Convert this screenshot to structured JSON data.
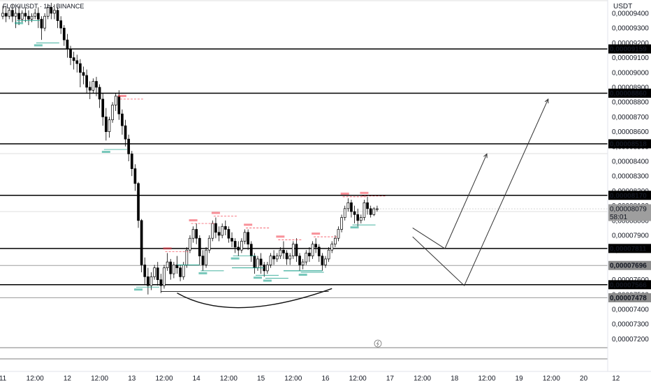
{
  "header": {
    "symbol_line": "FLOKIUSDT · 1h · BINANCE"
  },
  "price_axis": {
    "currency": "USDT",
    "labels": [
      "0,00009400",
      "0,00009300",
      "0,00009200",
      "0,00009100",
      "0,00009000",
      "0,00008900",
      "0,00008800",
      "0,00008700",
      "0,00008600",
      "0,00008500",
      "0,00008400",
      "0,00008300",
      "0,00008200",
      "0,00008100",
      "0,00008000",
      "0,00007900",
      "0,00007800",
      "0,00007700",
      "0,00007600",
      "0,00007500",
      "0,00007400",
      "0,00007300",
      "0,00007200"
    ],
    "current_price": "0,00008079",
    "countdown": "58:01",
    "colors": {
      "dark_tag": "#000000",
      "grey_tag": "#8c8c8c",
      "current_tag": "#9e9e9e"
    }
  },
  "time_axis": {
    "labels": [
      "11",
      "12:00",
      "12",
      "12:00",
      "13",
      "12:00",
      "14",
      "12:00",
      "15",
      "12:00",
      "16",
      "12:00",
      "17",
      "12:00",
      "18",
      "12:00",
      "19",
      "12:00",
      "20",
      "12"
    ]
  },
  "chart_data": {
    "type": "line",
    "title": "FLOKIUSDT · 1h · BINANCE",
    "ylim": [
      7.1e-05,
      9.45e-05
    ],
    "levels": [
      {
        "price": 9.159e-05,
        "label": "0,00009159",
        "style": "dark"
      },
      {
        "price": 8.86e-05,
        "label": "0,00008860",
        "style": "dark"
      },
      {
        "price": 8.518e-05,
        "label": "0,00008518",
        "style": "dark"
      },
      {
        "price": 8.17e-05,
        "label": "0,00008170",
        "style": "dark"
      },
      {
        "price": 7.811e-05,
        "label": "0,00007811",
        "style": "dark"
      },
      {
        "price": 7.696e-05,
        "label": "0,00007696",
        "style": "grey"
      },
      {
        "price": 7.566e-05,
        "label": "0,00007566",
        "style": "dark"
      },
      {
        "price": 7.478e-05,
        "label": "0,00007478",
        "style": "grey"
      }
    ],
    "projection_paths": [
      {
        "name": "short-scenario",
        "points": [
          [
            17.35,
            7.95e-05
          ],
          [
            17.85,
            7.81e-05
          ],
          [
            18.5,
            8.45e-05
          ]
        ]
      },
      {
        "name": "long-scenario",
        "points": [
          [
            17.35,
            7.89e-05
          ],
          [
            18.15,
            7.56e-05
          ],
          [
            19.45,
            8.82e-05
          ]
        ]
      }
    ],
    "pattern_arc": {
      "name": "rounded-bottom",
      "from": [
        13.7,
        7.51e-05
      ],
      "bottom": [
        14.55,
        7.43e-05
      ],
      "to": [
        16.1,
        7.54e-05
      ]
    },
    "candles": [
      {
        "t": 11.0,
        "o": 9380,
        "h": 9450,
        "c": 9400,
        "l": 9360
      },
      {
        "t": 11.05,
        "o": 9400,
        "h": 9450,
        "c": 9380,
        "l": 9340
      },
      {
        "t": 11.1,
        "o": 9380,
        "h": 9440,
        "c": 9420,
        "l": 9360
      },
      {
        "t": 11.15,
        "o": 9420,
        "h": 9460,
        "c": 9380,
        "l": 9340
      },
      {
        "t": 11.2,
        "o": 9380,
        "h": 9440,
        "c": 9400,
        "l": 9300
      },
      {
        "t": 11.25,
        "o": 9400,
        "h": 9450,
        "c": 9360,
        "l": 9320
      },
      {
        "t": 11.3,
        "o": 9360,
        "h": 9420,
        "c": 9400,
        "l": 9340
      },
      {
        "t": 11.35,
        "o": 9400,
        "h": 9440,
        "c": 9380,
        "l": 9340
      },
      {
        "t": 11.4,
        "o": 9380,
        "h": 9420,
        "c": 9360,
        "l": 9320
      },
      {
        "t": 11.45,
        "o": 9360,
        "h": 9400,
        "c": 9380,
        "l": 9340
      },
      {
        "t": 11.5,
        "o": 9380,
        "h": 9430,
        "c": 9400,
        "l": 9360
      },
      {
        "t": 11.55,
        "o": 9400,
        "h": 9440,
        "c": 9360,
        "l": 9300
      },
      {
        "t": 11.6,
        "o": 9360,
        "h": 9380,
        "c": 9300,
        "l": 9220
      },
      {
        "t": 11.65,
        "o": 9300,
        "h": 9400,
        "c": 9380,
        "l": 9280
      },
      {
        "t": 11.7,
        "o": 9380,
        "h": 9460,
        "c": 9440,
        "l": 9360
      },
      {
        "t": 11.75,
        "o": 9440,
        "h": 9470,
        "c": 9400,
        "l": 9360
      },
      {
        "t": 11.8,
        "o": 9400,
        "h": 9460,
        "c": 9420,
        "l": 9360
      },
      {
        "t": 11.85,
        "o": 9420,
        "h": 9440,
        "c": 9350,
        "l": 9300
      },
      {
        "t": 11.9,
        "o": 9350,
        "h": 9380,
        "c": 9300,
        "l": 9260
      },
      {
        "t": 11.95,
        "o": 9300,
        "h": 9320,
        "c": 9220,
        "l": 9180
      },
      {
        "t": 12.0,
        "o": 9220,
        "h": 9260,
        "c": 9160,
        "l": 9100
      },
      {
        "t": 12.05,
        "o": 9160,
        "h": 9180,
        "c": 9100,
        "l": 9050
      },
      {
        "t": 12.1,
        "o": 9100,
        "h": 9140,
        "c": 9080,
        "l": 9020
      },
      {
        "t": 12.15,
        "o": 9080,
        "h": 9120,
        "c": 9060,
        "l": 9000
      },
      {
        "t": 12.2,
        "o": 9060,
        "h": 9090,
        "c": 9000,
        "l": 8900
      },
      {
        "t": 12.25,
        "o": 9000,
        "h": 9040,
        "c": 8980,
        "l": 8920
      },
      {
        "t": 12.3,
        "o": 8980,
        "h": 9020,
        "c": 8900,
        "l": 8860
      },
      {
        "t": 12.35,
        "o": 8900,
        "h": 8940,
        "c": 8880,
        "l": 8820
      },
      {
        "t": 12.4,
        "o": 8880,
        "h": 8960,
        "c": 8940,
        "l": 8860
      },
      {
        "t": 12.45,
        "o": 8940,
        "h": 8970,
        "c": 8900,
        "l": 8840
      },
      {
        "t": 12.5,
        "o": 8900,
        "h": 8920,
        "c": 8820,
        "l": 8760
      },
      {
        "t": 12.55,
        "o": 8820,
        "h": 8860,
        "c": 8700,
        "l": 8640
      },
      {
        "t": 12.6,
        "o": 8700,
        "h": 8760,
        "c": 8600,
        "l": 8540
      },
      {
        "t": 12.65,
        "o": 8600,
        "h": 8700,
        "c": 8680,
        "l": 8560
      },
      {
        "t": 12.7,
        "o": 8680,
        "h": 8800,
        "c": 8780,
        "l": 8660
      },
      {
        "t": 12.75,
        "o": 8780,
        "h": 8860,
        "c": 8840,
        "l": 8740
      },
      {
        "t": 12.8,
        "o": 8840,
        "h": 8880,
        "c": 8720,
        "l": 8680
      },
      {
        "t": 12.85,
        "o": 8720,
        "h": 8750,
        "c": 8640,
        "l": 8580
      },
      {
        "t": 12.9,
        "o": 8640,
        "h": 8680,
        "c": 8550,
        "l": 8500
      },
      {
        "t": 12.95,
        "o": 8550,
        "h": 8580,
        "c": 8450,
        "l": 8400
      },
      {
        "t": 13.0,
        "o": 8450,
        "h": 8470,
        "c": 8350,
        "l": 8300
      },
      {
        "t": 13.05,
        "o": 8350,
        "h": 8380,
        "c": 8250,
        "l": 8200
      },
      {
        "t": 13.1,
        "o": 8250,
        "h": 8260,
        "c": 8000,
        "l": 7950
      },
      {
        "t": 13.15,
        "o": 8000,
        "h": 8010,
        "c": 7700,
        "l": 7650
      },
      {
        "t": 13.2,
        "o": 7700,
        "h": 7750,
        "c": 7620,
        "l": 7570
      },
      {
        "t": 13.25,
        "o": 7620,
        "h": 7680,
        "c": 7560,
        "l": 7500
      },
      {
        "t": 13.3,
        "o": 7560,
        "h": 7650,
        "c": 7620,
        "l": 7530
      },
      {
        "t": 13.35,
        "o": 7620,
        "h": 7700,
        "c": 7680,
        "l": 7600
      },
      {
        "t": 13.4,
        "o": 7680,
        "h": 7720,
        "c": 7600,
        "l": 7560
      },
      {
        "t": 13.45,
        "o": 7600,
        "h": 7640,
        "c": 7560,
        "l": 7510
      },
      {
        "t": 13.5,
        "o": 7560,
        "h": 7700,
        "c": 7680,
        "l": 7540
      },
      {
        "t": 13.55,
        "o": 7680,
        "h": 7780,
        "c": 7720,
        "l": 7660
      },
      {
        "t": 13.6,
        "o": 7720,
        "h": 7740,
        "c": 7640,
        "l": 7600
      },
      {
        "t": 13.65,
        "o": 7640,
        "h": 7720,
        "c": 7700,
        "l": 7610
      },
      {
        "t": 13.7,
        "o": 7700,
        "h": 7760,
        "c": 7680,
        "l": 7640
      },
      {
        "t": 13.75,
        "o": 7680,
        "h": 7700,
        "c": 7620,
        "l": 7590
      },
      {
        "t": 13.8,
        "o": 7620,
        "h": 7720,
        "c": 7700,
        "l": 7600
      },
      {
        "t": 13.85,
        "o": 7700,
        "h": 7820,
        "c": 7800,
        "l": 7680
      },
      {
        "t": 13.9,
        "o": 7800,
        "h": 7900,
        "c": 7880,
        "l": 7780
      },
      {
        "t": 13.95,
        "o": 7880,
        "h": 7960,
        "c": 7940,
        "l": 7850
      },
      {
        "t": 14.0,
        "o": 7940,
        "h": 7980,
        "c": 7880,
        "l": 7840
      },
      {
        "t": 14.05,
        "o": 7880,
        "h": 7900,
        "c": 7760,
        "l": 7700
      },
      {
        "t": 14.1,
        "o": 7760,
        "h": 7800,
        "c": 7700,
        "l": 7660
      },
      {
        "t": 14.15,
        "o": 7700,
        "h": 7820,
        "c": 7800,
        "l": 7680
      },
      {
        "t": 14.2,
        "o": 7800,
        "h": 7900,
        "c": 7880,
        "l": 7780
      },
      {
        "t": 14.25,
        "o": 7880,
        "h": 8000,
        "c": 7980,
        "l": 7860
      },
      {
        "t": 14.3,
        "o": 7980,
        "h": 8020,
        "c": 7920,
        "l": 7880
      },
      {
        "t": 14.35,
        "o": 7920,
        "h": 7960,
        "c": 7900,
        "l": 7860
      },
      {
        "t": 14.4,
        "o": 7900,
        "h": 7980,
        "c": 7960,
        "l": 7880
      },
      {
        "t": 14.45,
        "o": 7960,
        "h": 8000,
        "c": 7940,
        "l": 7900
      },
      {
        "t": 14.5,
        "o": 7940,
        "h": 7960,
        "c": 7880,
        "l": 7850
      },
      {
        "t": 14.55,
        "o": 7880,
        "h": 7920,
        "c": 7860,
        "l": 7820
      },
      {
        "t": 14.6,
        "o": 7860,
        "h": 7880,
        "c": 7820,
        "l": 7780
      },
      {
        "t": 14.65,
        "o": 7820,
        "h": 7860,
        "c": 7800,
        "l": 7760
      },
      {
        "t": 14.7,
        "o": 7800,
        "h": 7880,
        "c": 7860,
        "l": 7780
      },
      {
        "t": 14.75,
        "o": 7860,
        "h": 7940,
        "c": 7920,
        "l": 7840
      },
      {
        "t": 14.8,
        "o": 7920,
        "h": 7940,
        "c": 7840,
        "l": 7800
      },
      {
        "t": 14.85,
        "o": 7840,
        "h": 7860,
        "c": 7760,
        "l": 7720
      },
      {
        "t": 14.9,
        "o": 7760,
        "h": 7780,
        "c": 7680,
        "l": 7640
      },
      {
        "t": 14.95,
        "o": 7680,
        "h": 7760,
        "c": 7740,
        "l": 7660
      },
      {
        "t": 15.0,
        "o": 7740,
        "h": 7780,
        "c": 7700,
        "l": 7640
      },
      {
        "t": 15.05,
        "o": 7700,
        "h": 7720,
        "c": 7660,
        "l": 7620
      },
      {
        "t": 15.1,
        "o": 7660,
        "h": 7720,
        "c": 7700,
        "l": 7640
      },
      {
        "t": 15.15,
        "o": 7700,
        "h": 7780,
        "c": 7760,
        "l": 7680
      },
      {
        "t": 15.2,
        "o": 7760,
        "h": 7800,
        "c": 7740,
        "l": 7700
      },
      {
        "t": 15.25,
        "o": 7740,
        "h": 7780,
        "c": 7760,
        "l": 7720
      },
      {
        "t": 15.3,
        "o": 7760,
        "h": 7820,
        "c": 7800,
        "l": 7740
      },
      {
        "t": 15.35,
        "o": 7800,
        "h": 7860,
        "c": 7780,
        "l": 7740
      },
      {
        "t": 15.4,
        "o": 7780,
        "h": 7800,
        "c": 7740,
        "l": 7700
      },
      {
        "t": 15.45,
        "o": 7740,
        "h": 7780,
        "c": 7760,
        "l": 7700
      },
      {
        "t": 15.5,
        "o": 7760,
        "h": 7860,
        "c": 7840,
        "l": 7740
      },
      {
        "t": 15.55,
        "o": 7840,
        "h": 7880,
        "c": 7760,
        "l": 7720
      },
      {
        "t": 15.6,
        "o": 7760,
        "h": 7780,
        "c": 7700,
        "l": 7660
      },
      {
        "t": 15.65,
        "o": 7700,
        "h": 7740,
        "c": 7720,
        "l": 7670
      },
      {
        "t": 15.7,
        "o": 7720,
        "h": 7800,
        "c": 7780,
        "l": 7700
      },
      {
        "t": 15.75,
        "o": 7780,
        "h": 7820,
        "c": 7760,
        "l": 7720
      },
      {
        "t": 15.8,
        "o": 7760,
        "h": 7860,
        "c": 7840,
        "l": 7740
      },
      {
        "t": 15.85,
        "o": 7840,
        "h": 7880,
        "c": 7820,
        "l": 7780
      },
      {
        "t": 15.9,
        "o": 7820,
        "h": 7840,
        "c": 7760,
        "l": 7720
      },
      {
        "t": 15.95,
        "o": 7760,
        "h": 7780,
        "c": 7700,
        "l": 7660
      },
      {
        "t": 16.0,
        "o": 7700,
        "h": 7760,
        "c": 7740,
        "l": 7680
      },
      {
        "t": 16.05,
        "o": 7740,
        "h": 7820,
        "c": 7800,
        "l": 7720
      },
      {
        "t": 16.1,
        "o": 7800,
        "h": 7860,
        "c": 7840,
        "l": 7780
      },
      {
        "t": 16.15,
        "o": 7840,
        "h": 7900,
        "c": 7880,
        "l": 7820
      },
      {
        "t": 16.2,
        "o": 7880,
        "h": 7960,
        "c": 7940,
        "l": 7860
      },
      {
        "t": 16.25,
        "o": 7940,
        "h": 8040,
        "c": 8020,
        "l": 7920
      },
      {
        "t": 16.3,
        "o": 8020,
        "h": 8100,
        "c": 8080,
        "l": 8000
      },
      {
        "t": 16.35,
        "o": 8080,
        "h": 8150,
        "c": 8120,
        "l": 8060
      },
      {
        "t": 16.4,
        "o": 8120,
        "h": 8140,
        "c": 8060,
        "l": 8020
      },
      {
        "t": 16.45,
        "o": 8060,
        "h": 8100,
        "c": 8040,
        "l": 7980
      },
      {
        "t": 16.5,
        "o": 8040,
        "h": 8080,
        "c": 8000,
        "l": 7960
      },
      {
        "t": 16.55,
        "o": 8000,
        "h": 8040,
        "c": 8020,
        "l": 7980
      },
      {
        "t": 16.6,
        "o": 8020,
        "h": 8140,
        "c": 8120,
        "l": 8000
      },
      {
        "t": 16.65,
        "o": 8120,
        "h": 8160,
        "c": 8080,
        "l": 8040
      },
      {
        "t": 16.7,
        "o": 8080,
        "h": 8100,
        "c": 8040,
        "l": 8020
      },
      {
        "t": 16.75,
        "o": 8040,
        "h": 8090,
        "c": 8079,
        "l": 8030
      },
      {
        "t": 16.8,
        "o": 8079,
        "h": 8100,
        "c": 8079,
        "l": 8060
      }
    ]
  }
}
